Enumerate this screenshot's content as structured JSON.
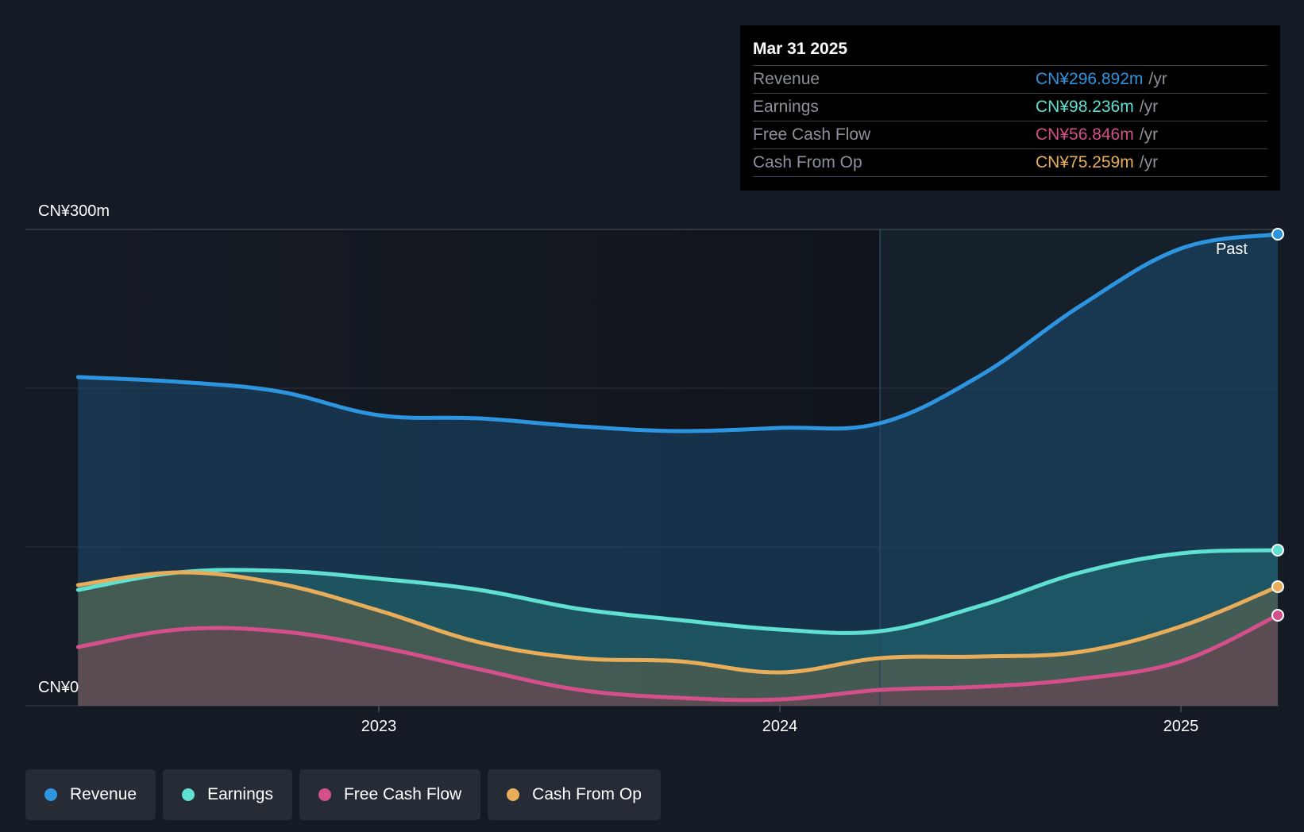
{
  "chart_data": {
    "type": "area",
    "y_axis_labels": [
      "CN¥300m",
      "CN¥0"
    ],
    "ylim": [
      0,
      300
    ],
    "xlim": [
      2022.333,
      2025.25
    ],
    "x_ticks": [
      {
        "label": "2023",
        "x": 2023.0
      },
      {
        "label": "2024",
        "x": 2024.0
      },
      {
        "label": "2025",
        "x": 2025.0
      }
    ],
    "grid": true,
    "past_label": "Past",
    "past_region_start": 2024.25,
    "series": [
      {
        "name": "Revenue",
        "color": "#2d94e0",
        "points": [
          [
            2022.25,
            207
          ],
          [
            2022.5,
            204
          ],
          [
            2022.75,
            198
          ],
          [
            2023.0,
            183
          ],
          [
            2023.25,
            181
          ],
          [
            2023.5,
            176
          ],
          [
            2023.75,
            173
          ],
          [
            2024.0,
            175
          ],
          [
            2024.25,
            178
          ],
          [
            2024.5,
            208
          ],
          [
            2024.75,
            252
          ],
          [
            2025.0,
            288
          ],
          [
            2025.25,
            297
          ]
        ]
      },
      {
        "name": "Earnings",
        "color": "#5fe0d0",
        "points": [
          [
            2022.25,
            73
          ],
          [
            2022.5,
            84
          ],
          [
            2022.75,
            85
          ],
          [
            2023.0,
            80
          ],
          [
            2023.25,
            73
          ],
          [
            2023.5,
            61
          ],
          [
            2023.75,
            54
          ],
          [
            2024.0,
            48
          ],
          [
            2024.25,
            47
          ],
          [
            2024.5,
            63
          ],
          [
            2024.75,
            84
          ],
          [
            2025.0,
            96
          ],
          [
            2025.25,
            98
          ]
        ]
      },
      {
        "name": "Free Cash Flow",
        "color": "#d4508a",
        "points": [
          [
            2022.25,
            37
          ],
          [
            2022.5,
            48
          ],
          [
            2022.75,
            47
          ],
          [
            2023.0,
            37
          ],
          [
            2023.25,
            23
          ],
          [
            2023.5,
            10
          ],
          [
            2023.75,
            5
          ],
          [
            2024.0,
            4
          ],
          [
            2024.25,
            10
          ],
          [
            2024.5,
            12
          ],
          [
            2024.75,
            17
          ],
          [
            2025.0,
            28
          ],
          [
            2025.25,
            57
          ]
        ]
      },
      {
        "name": "Cash From Op",
        "color": "#e8ad5a",
        "points": [
          [
            2022.25,
            76
          ],
          [
            2022.5,
            84
          ],
          [
            2022.75,
            77
          ],
          [
            2023.0,
            60
          ],
          [
            2023.25,
            40
          ],
          [
            2023.5,
            30
          ],
          [
            2023.75,
            28
          ],
          [
            2024.0,
            21
          ],
          [
            2024.25,
            30
          ],
          [
            2024.5,
            31
          ],
          [
            2024.75,
            34
          ],
          [
            2025.0,
            50
          ],
          [
            2025.25,
            75
          ]
        ]
      }
    ]
  },
  "tooltip": {
    "date": "Mar 31 2025",
    "rows": [
      {
        "label": "Revenue",
        "value": "CN¥296.892m",
        "unit": "/yr",
        "color": "#2d94e0"
      },
      {
        "label": "Earnings",
        "value": "CN¥98.236m",
        "unit": "/yr",
        "color": "#5fe0d0"
      },
      {
        "label": "Free Cash Flow",
        "value": "CN¥56.846m",
        "unit": "/yr",
        "color": "#d4508a"
      },
      {
        "label": "Cash From Op",
        "value": "CN¥75.259m",
        "unit": "/yr",
        "color": "#e8ad5a"
      }
    ]
  },
  "legend": [
    {
      "label": "Revenue",
      "color": "#2d94e0"
    },
    {
      "label": "Earnings",
      "color": "#5fe0d0"
    },
    {
      "label": "Free Cash Flow",
      "color": "#d4508a"
    },
    {
      "label": "Cash From Op",
      "color": "#e8ad5a"
    }
  ]
}
